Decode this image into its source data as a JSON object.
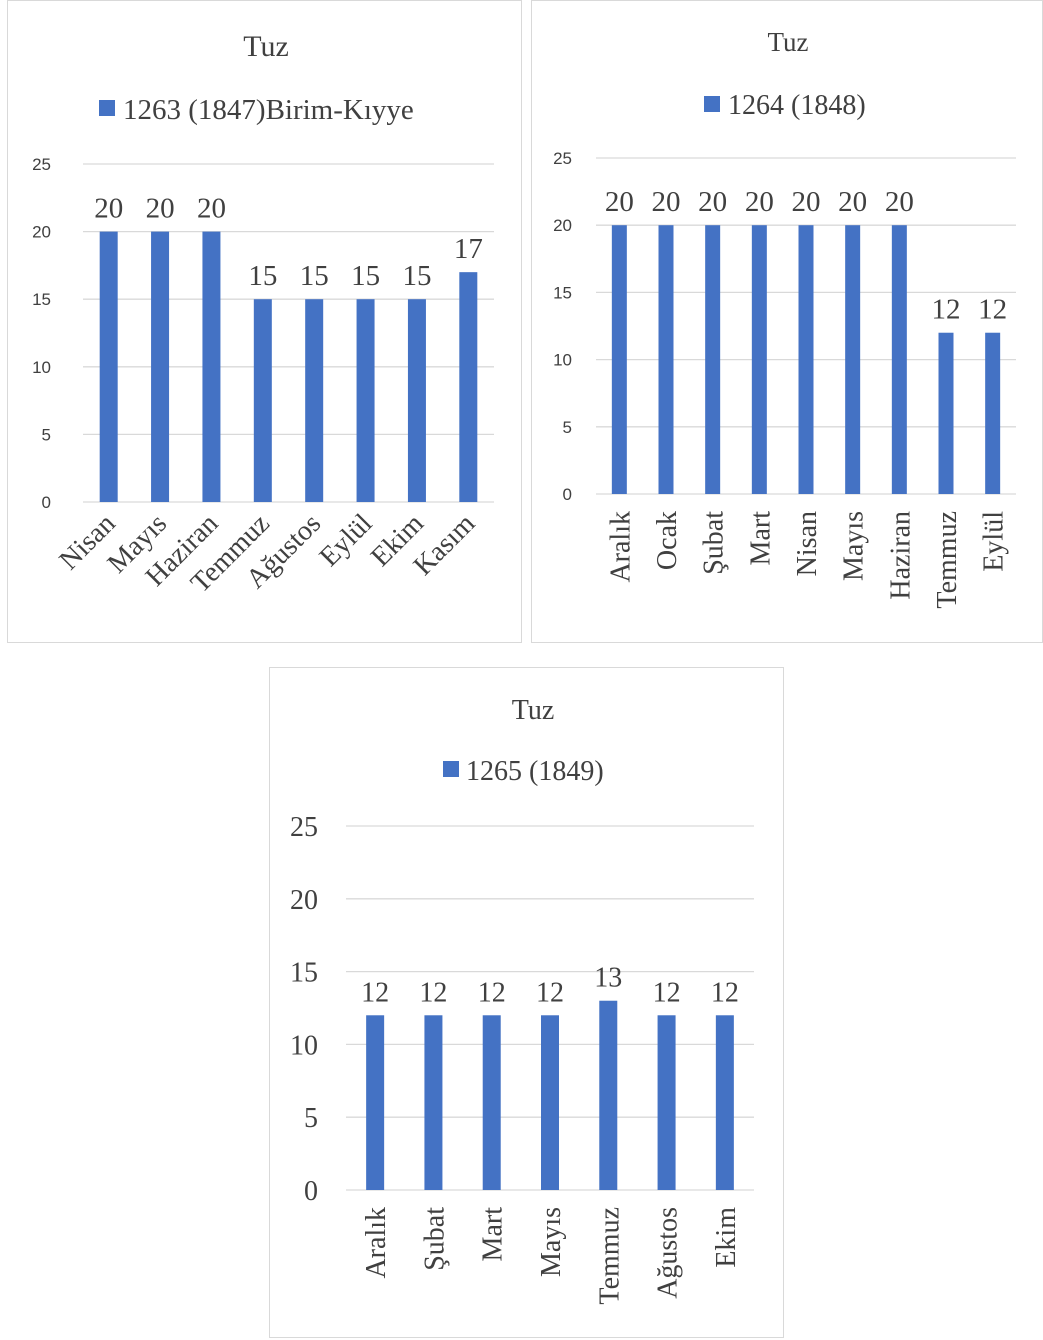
{
  "colors": {
    "bar": "#4472c4",
    "grid": "#d9d9d9",
    "text": "#404040"
  },
  "chart_data": [
    {
      "type": "bar",
      "title": "Tuz",
      "legend_position": "top",
      "grid": true,
      "ylim": [
        0,
        25
      ],
      "yticks": [
        "0",
        "5",
        "10",
        "15",
        "20",
        "25"
      ],
      "categories": [
        "Nisan",
        "Mayıs",
        "Haziran",
        "Temmuz",
        "Ağustos",
        "Eylül",
        "Ekim",
        "Kasım"
      ],
      "series": [
        {
          "name": "1263 (1847)Birim-Kıyye",
          "values": [
            20,
            20,
            20,
            15,
            15,
            15,
            15,
            17
          ]
        }
      ]
    },
    {
      "type": "bar",
      "title": "Tuz",
      "legend_position": "top",
      "grid": true,
      "ylim": [
        0,
        25
      ],
      "yticks": [
        "0",
        "5",
        "10",
        "15",
        "20",
        "25"
      ],
      "categories": [
        "Aralık",
        "Ocak",
        "Şubat",
        "Mart",
        "Nisan",
        "Mayıs",
        "Haziran",
        "Temmuz",
        "Eylül"
      ],
      "series": [
        {
          "name": "1264 (1848)",
          "values": [
            20,
            20,
            20,
            20,
            20,
            20,
            20,
            12,
            12
          ]
        }
      ]
    },
    {
      "type": "bar",
      "title": "Tuz",
      "legend_position": "top",
      "grid": true,
      "ylim": [
        0,
        25
      ],
      "yticks": [
        "0",
        "5",
        "10",
        "15",
        "20",
        "25"
      ],
      "categories": [
        "Aralık",
        "Şubat",
        "Mart",
        "Mayıs",
        "Temmuz",
        "Ağustos",
        "Ekim"
      ],
      "series": [
        {
          "name": "1265 (1849)",
          "values": [
            12,
            12,
            12,
            12,
            13,
            12,
            12
          ]
        }
      ]
    }
  ]
}
